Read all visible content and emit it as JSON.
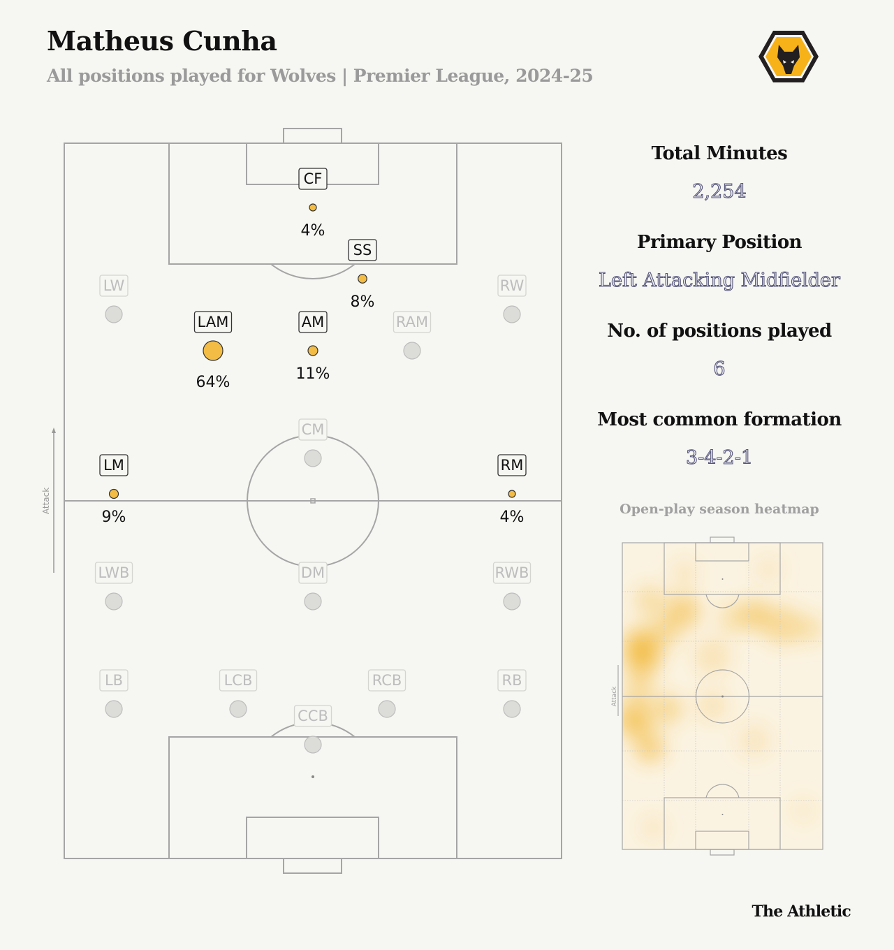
{
  "header": {
    "title": "Matheus Cunha",
    "subtitle": "All positions played for Wolves | Premier League, 2024-25",
    "club_logo": "wolves-crest"
  },
  "pitch": {
    "attack_label": "Attack",
    "active_color": "#f2bc45",
    "inactive_color": "#dcdcd8",
    "positions": [
      {
        "label": "CF",
        "pct": "4%",
        "value": 4,
        "active": true
      },
      {
        "label": "SS",
        "pct": "8%",
        "value": 8,
        "active": true
      },
      {
        "label": "LW",
        "pct": null,
        "value": 0,
        "active": false
      },
      {
        "label": "RW",
        "pct": null,
        "value": 0,
        "active": false
      },
      {
        "label": "LAM",
        "pct": "64%",
        "value": 64,
        "active": true
      },
      {
        "label": "AM",
        "pct": "11%",
        "value": 11,
        "active": true
      },
      {
        "label": "RAM",
        "pct": null,
        "value": 0,
        "active": false
      },
      {
        "label": "CM",
        "pct": null,
        "value": 0,
        "active": false
      },
      {
        "label": "LM",
        "pct": "9%",
        "value": 9,
        "active": true
      },
      {
        "label": "RM",
        "pct": "4%",
        "value": 4,
        "active": true
      },
      {
        "label": "LWB",
        "pct": null,
        "value": 0,
        "active": false
      },
      {
        "label": "DM",
        "pct": null,
        "value": 0,
        "active": false
      },
      {
        "label": "RWB",
        "pct": null,
        "value": 0,
        "active": false
      },
      {
        "label": "LB",
        "pct": null,
        "value": 0,
        "active": false
      },
      {
        "label": "LCB",
        "pct": null,
        "value": 0,
        "active": false
      },
      {
        "label": "RCB",
        "pct": null,
        "value": 0,
        "active": false
      },
      {
        "label": "RB",
        "pct": null,
        "value": 0,
        "active": false
      },
      {
        "label": "CCB",
        "pct": null,
        "value": 0,
        "active": false
      }
    ]
  },
  "stats": [
    {
      "label": "Total Minutes",
      "value": "2,254"
    },
    {
      "label": "Primary Position",
      "value": "Left Attacking Midfielder"
    },
    {
      "label": "No. of positions played",
      "value": "6"
    },
    {
      "label": "Most common formation",
      "value": "3-4-2-1"
    }
  ],
  "heatmap": {
    "title": "Open-play season heatmap",
    "attack_label": "Attack"
  },
  "footer": {
    "brand": "The Athletic"
  }
}
